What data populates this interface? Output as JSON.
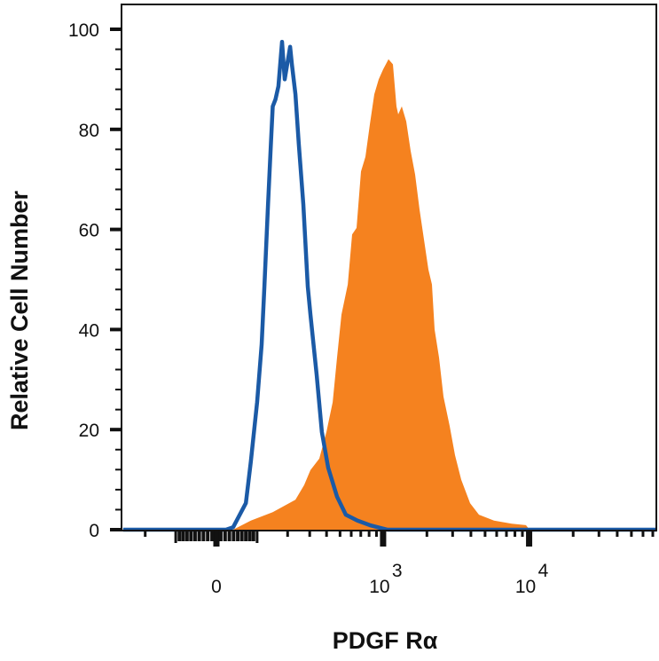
{
  "chart_data": {
    "type": "area",
    "title": "",
    "xlabel": "PDGF Rα",
    "ylabel": "Relative Cell Number",
    "x_scale": "biexponential",
    "xlim": [
      -300,
      74000
    ],
    "ylim": [
      0,
      100
    ],
    "grid": false,
    "x_ticks": [
      {
        "value": 0,
        "label": "0",
        "exp": ""
      },
      {
        "value": 1000,
        "label": "10",
        "exp": "3"
      },
      {
        "value": 10000,
        "label": "10",
        "exp": "4"
      }
    ],
    "y_ticks": [
      {
        "value": 0,
        "label": "0"
      },
      {
        "value": 20,
        "label": "20"
      },
      {
        "value": 40,
        "label": "40"
      },
      {
        "value": 60,
        "label": "60"
      },
      {
        "value": 80,
        "label": "80"
      },
      {
        "value": 100,
        "label": "100"
      }
    ],
    "series": [
      {
        "style": "filled",
        "color": "#f5821f",
        "x": [
          -300,
          39,
          83,
          147,
          232,
          272,
          304,
          354,
          399,
          443,
          476,
          512,
          567,
          609,
          654,
          702,
          754,
          810,
          869,
          933,
          1001,
          1044,
          1089,
          1169,
          1236,
          1271,
          1345,
          1443,
          1548,
          1660,
          1781,
          1910,
          2048,
          2166,
          2259,
          2422,
          2597,
          2865,
          3114,
          3434,
          3948,
          4541,
          5755,
          7611,
          9518,
          10060,
          74000
        ],
        "y": [
          0,
          0,
          1.8,
          3.5,
          6,
          8.9,
          11.9,
          14.2,
          19.5,
          25.5,
          34.4,
          43,
          49,
          59,
          60.3,
          71.6,
          74.5,
          81,
          87,
          90,
          92,
          93,
          94,
          93,
          84.6,
          83,
          84.6,
          81.6,
          75.7,
          71,
          64,
          58,
          52,
          49,
          40,
          34.4,
          26.6,
          20.7,
          14.9,
          10,
          5.3,
          3,
          1.8,
          1.2,
          0.9,
          0,
          0
        ]
      },
      {
        "style": "outline",
        "color": "#1b5aa6",
        "x": [
          -300,
          22,
          39,
          70,
          83,
          100,
          113,
          121,
          132,
          141,
          147,
          156,
          166,
          179,
          189,
          210,
          217,
          232,
          247,
          268,
          290,
          304,
          338,
          370,
          411,
          476,
          550,
          663,
          810,
          973,
          1074,
          74000
        ],
        "y": [
          0,
          0,
          0.5,
          5.3,
          13.6,
          25.5,
          37,
          48.6,
          65,
          77,
          84.6,
          86,
          88.6,
          97.5,
          90,
          96.5,
          93,
          87,
          77,
          65,
          48.6,
          43,
          31,
          19.5,
          12.4,
          6.6,
          3,
          1.8,
          0.9,
          0.3,
          0,
          0
        ]
      }
    ]
  }
}
